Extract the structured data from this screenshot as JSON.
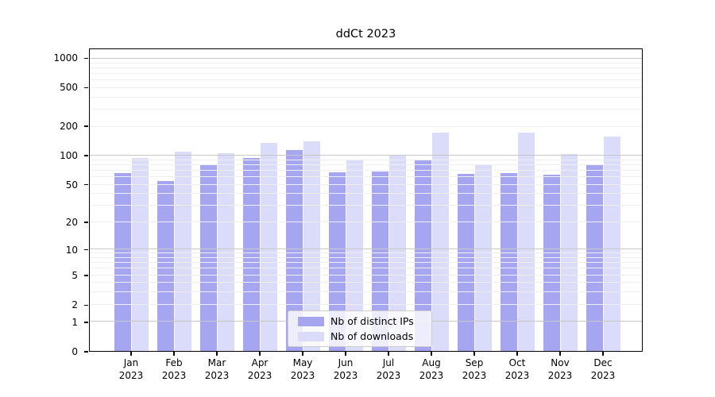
{
  "chart_data": {
    "type": "bar",
    "title": "ddCt 2023",
    "categories": [
      "Jan 2023",
      "Feb 2023",
      "Mar 2023",
      "Apr 2023",
      "May 2023",
      "Jun 2023",
      "Jul 2023",
      "Aug 2023",
      "Sep 2023",
      "Oct 2023",
      "Nov 2023",
      "Dec 2023"
    ],
    "series": [
      {
        "name": "Nb of distinct IPs",
        "color": "#a6a6f0",
        "values": [
          65,
          54,
          79,
          93,
          112,
          66,
          67,
          88,
          63,
          65,
          62,
          80
        ]
      },
      {
        "name": "Nb of downloads",
        "color": "#dbdbfa",
        "values": [
          92,
          107,
          104,
          133,
          138,
          90,
          100,
          170,
          79,
          170,
          102,
          155
        ]
      }
    ],
    "xlabel": "",
    "ylabel": "",
    "yscale": "log1p",
    "yticks": [
      0,
      1,
      2,
      5,
      10,
      20,
      50,
      100,
      200,
      500,
      1000
    ],
    "ylim": [
      0,
      1250
    ],
    "ylim_log_units": 3.1,
    "grid": {
      "on": true,
      "major_color": "#c8c8c8",
      "minor_color": "#efefef",
      "drawn_above_bars": true
    },
    "legend": {
      "position": "lower center"
    }
  }
}
